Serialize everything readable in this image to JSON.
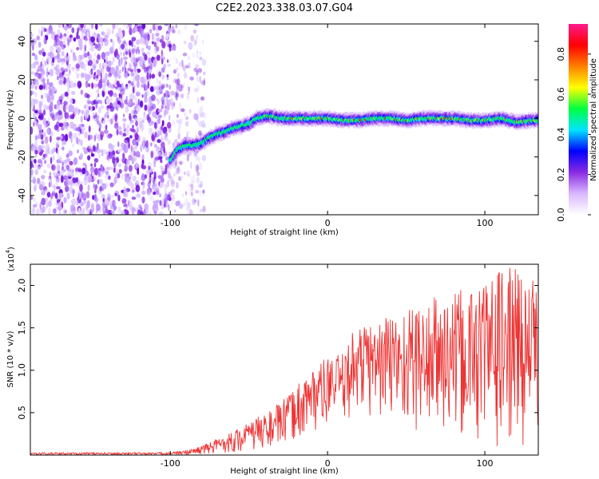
{
  "title": "C2E2.2023.338.03.07.G04",
  "chart_data": [
    {
      "type": "heatmap",
      "title": "",
      "xlabel": "Height of straight line (km)",
      "ylabel": "Frequency (Hz)",
      "xlim": [
        -189,
        134
      ],
      "ylim": [
        -50,
        49
      ],
      "xticks": [
        -100,
        0,
        100
      ],
      "yticks": [
        -40,
        -20,
        0,
        20,
        40
      ],
      "noise_region_x": [
        -189,
        -78
      ],
      "signal_track": {
        "x": [
          -100,
          -95,
          -90,
          -85,
          -80,
          -75,
          -70,
          -65,
          -60,
          -55,
          -50,
          -45,
          -40,
          -35,
          -30,
          -20,
          -10,
          0,
          10,
          20,
          30,
          40,
          50,
          60,
          70,
          80,
          90,
          100,
          110,
          120,
          130
        ],
        "y": [
          -22,
          -16,
          -14,
          -14,
          -13,
          -10,
          -8,
          -7,
          -5,
          -4,
          -3,
          0,
          1,
          1,
          0,
          0,
          0,
          0,
          -1,
          -1,
          0,
          0,
          -1,
          0,
          0,
          0,
          -1,
          -1,
          0,
          -2,
          -1
        ]
      },
      "colorbar": {
        "label": "Normalized spectral amplitude",
        "ticks": [
          "0.0",
          "0.2",
          "0.4",
          "0.6",
          "0.8"
        ],
        "range": [
          0,
          0.95
        ],
        "colors": [
          "#ffffff",
          "#d9b8ff",
          "#8a2be2",
          "#0000ff",
          "#00e5ff",
          "#00ff40",
          "#ffff00",
          "#ff8000",
          "#ff0000",
          "#ff1a8c"
        ]
      }
    },
    {
      "type": "line",
      "title": "",
      "xlabel": "Height of straight line (km)",
      "ylabel": "SNR (10 * v/v)",
      "multiplier": "(x10",
      "multiplier_exp": "4",
      "multiplier_close": ")",
      "xlim": [
        -189,
        134
      ],
      "ylim": [
        0,
        2.25
      ],
      "xticks": [
        -100,
        0,
        100
      ],
      "yticks": [
        "0.5",
        "1.0",
        "1.5",
        "2.0"
      ],
      "color": "#ee3333",
      "envelope": {
        "x": [
          -189,
          -110,
          -95,
          -85,
          -75,
          -65,
          -55,
          -45,
          -35,
          -25,
          -15,
          -5,
          0,
          10,
          15,
          20,
          30,
          40,
          50,
          60,
          70,
          80,
          90,
          100,
          110,
          120,
          130,
          134
        ],
        "upper": [
          0.03,
          0.03,
          0.04,
          0.08,
          0.15,
          0.25,
          0.33,
          0.45,
          0.55,
          0.7,
          0.95,
          1.1,
          1.15,
          1.2,
          1.45,
          1.55,
          1.6,
          1.7,
          1.75,
          1.8,
          1.9,
          1.9,
          2.0,
          2.1,
          2.2,
          2.25,
          2.1,
          2.0
        ],
        "lower": [
          0.0,
          0.0,
          0.0,
          0.0,
          0.01,
          0.02,
          0.03,
          0.05,
          0.08,
          0.12,
          0.2,
          0.3,
          0.35,
          0.4,
          0.45,
          0.5,
          0.4,
          0.35,
          0.3,
          0.25,
          0.2,
          0.15,
          0.1,
          0.12,
          0.08,
          0.1,
          0.1,
          0.1
        ]
      }
    }
  ]
}
